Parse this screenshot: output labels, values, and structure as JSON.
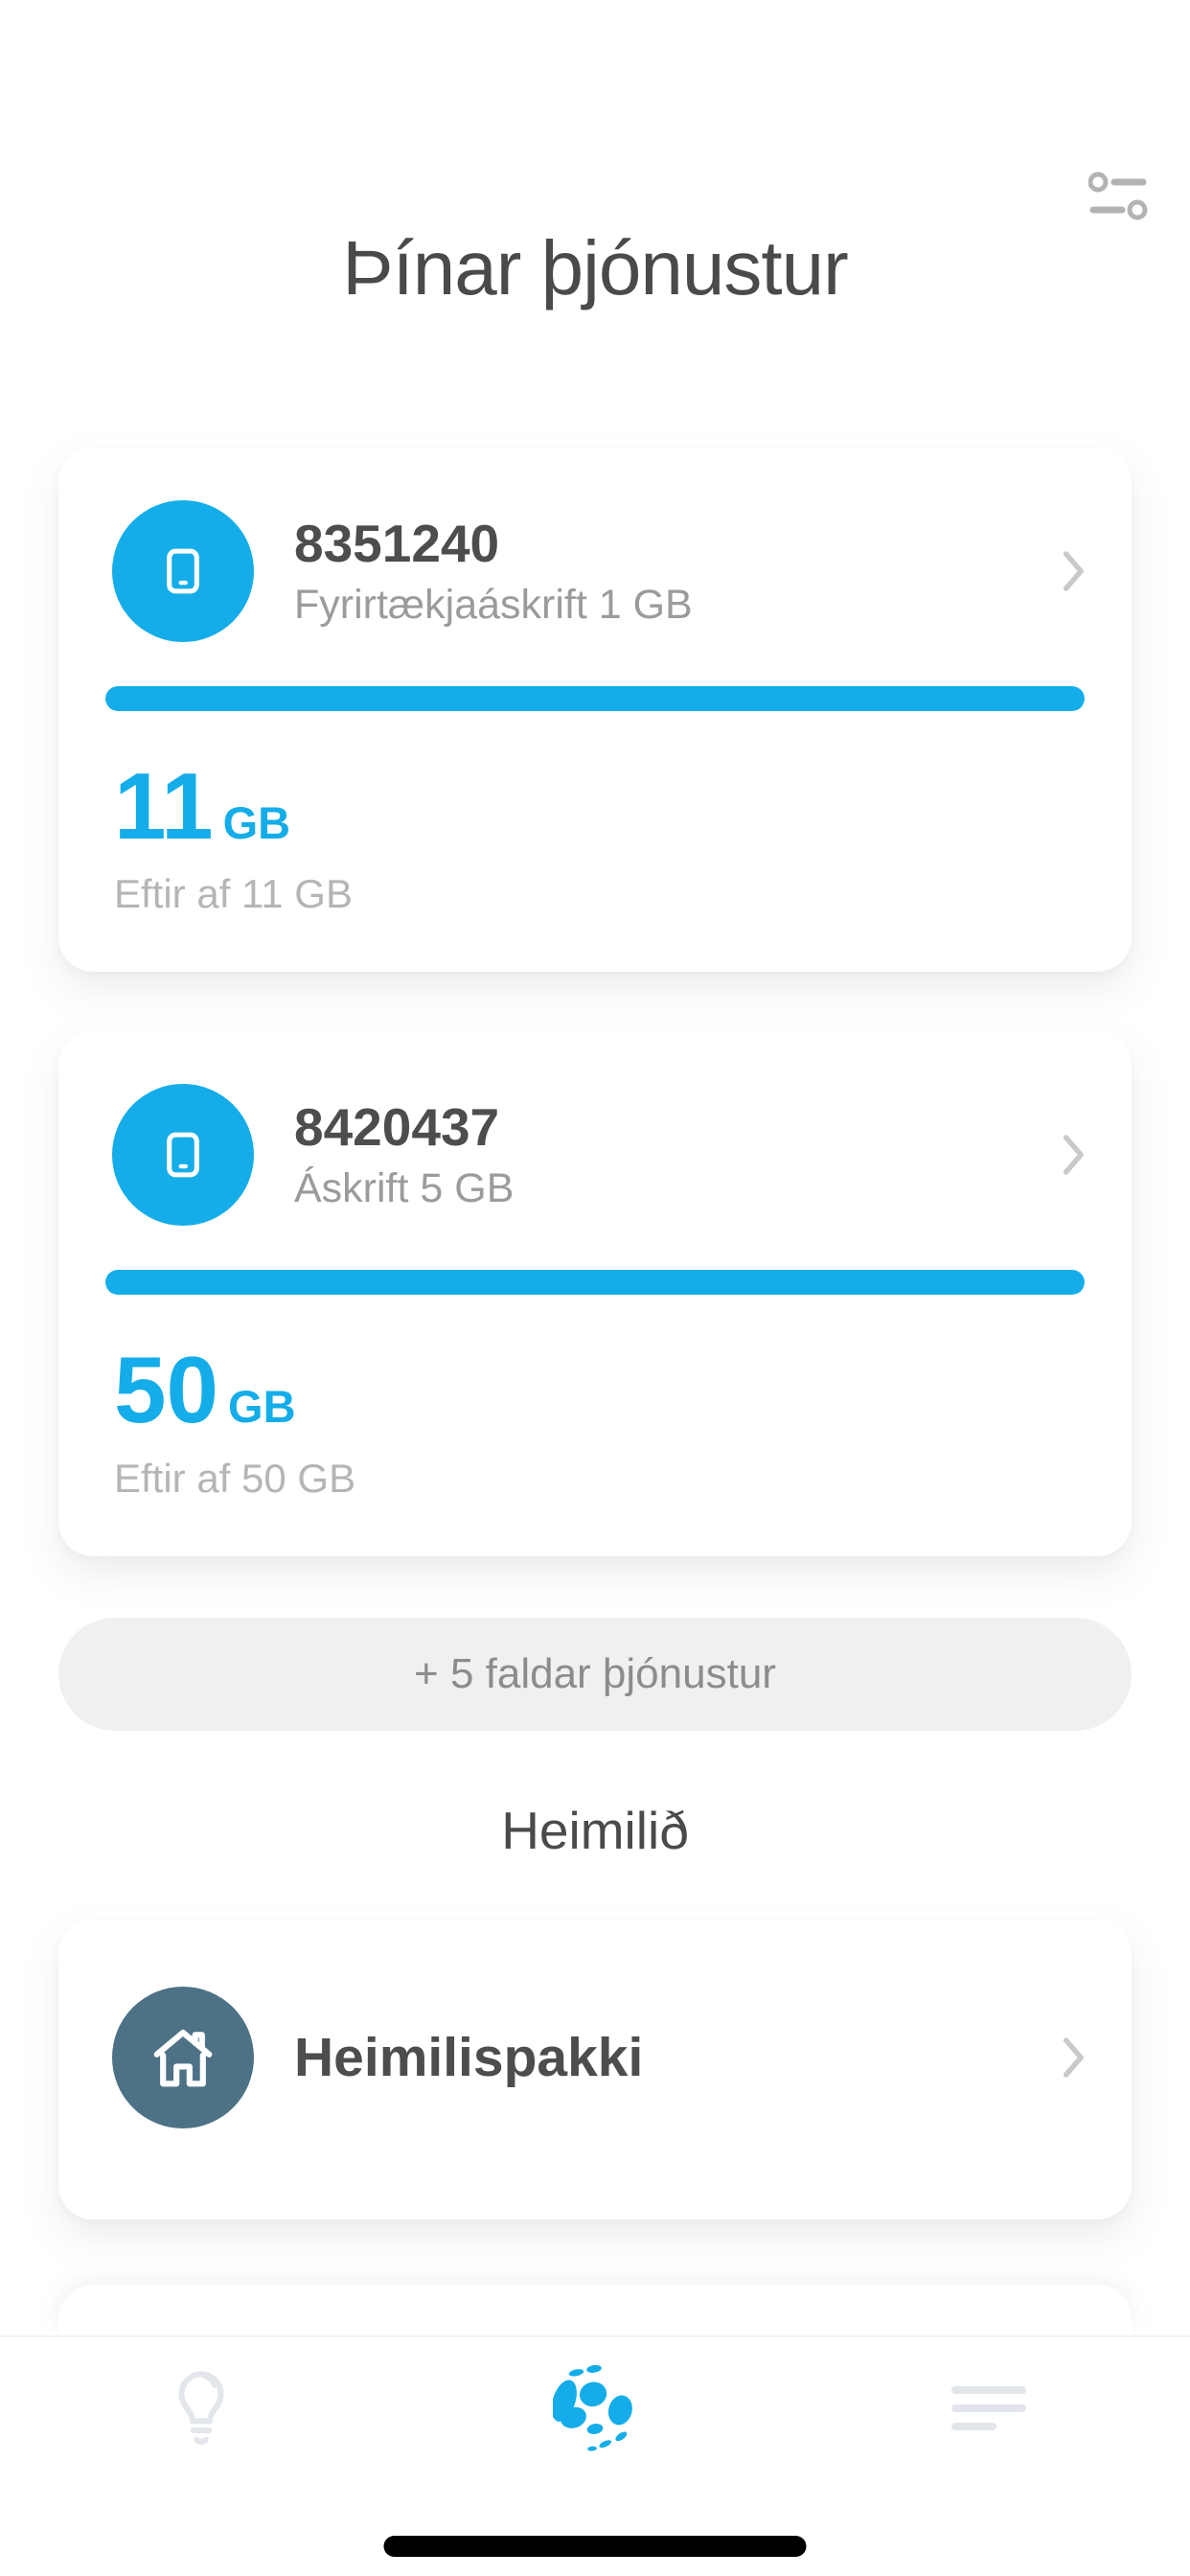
{
  "colors": {
    "accent": "#14ade9",
    "slate": "#4d7286",
    "text_dark": "#4a4a4a",
    "text_gray": "#9b9b9b",
    "text_light": "#b5b5b5"
  },
  "header": {
    "title": "Þínar þjónustur",
    "filter_icon": "filter-sliders-icon"
  },
  "services": [
    {
      "number": "8351240",
      "plan": "Fyrirtækjaáskrift 1 GB",
      "progress_percent": 100,
      "remaining_value": "11",
      "remaining_unit": "GB",
      "remaining_caption": "Eftir af 11 GB",
      "icon": "phone-icon"
    },
    {
      "number": "8420437",
      "plan": "Áskrift 5 GB",
      "progress_percent": 100,
      "remaining_value": "50",
      "remaining_unit": "GB",
      "remaining_caption": "Eftir af 50 GB",
      "icon": "phone-icon"
    }
  ],
  "more_button": {
    "label": "+ 5 faldar þjónustur"
  },
  "home_section": {
    "title": "Heimilið",
    "items": [
      {
        "label": "Heimilispakki",
        "icon": "home-icon"
      }
    ]
  },
  "tabbar": {
    "items": [
      {
        "icon": "lightbulb-icon"
      },
      {
        "icon": "app-logo-icon"
      },
      {
        "icon": "menu-icon"
      }
    ]
  }
}
